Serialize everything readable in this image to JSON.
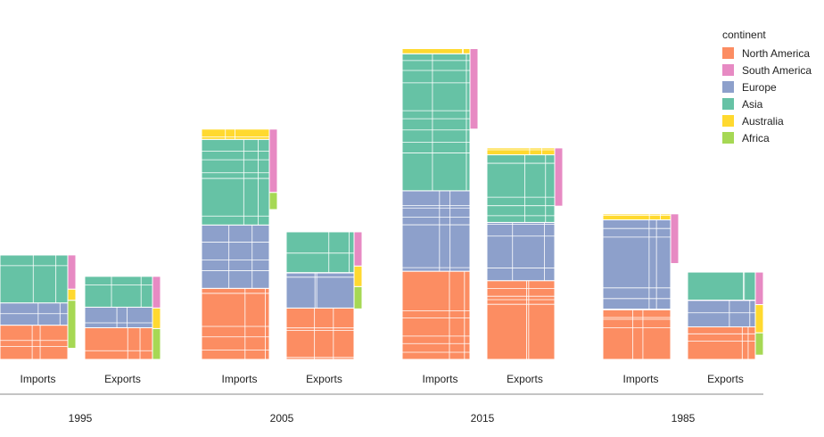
{
  "chart_data": {
    "type": "bar",
    "title": "",
    "xlabel": "",
    "ylabel": "",
    "groups": [
      "1995",
      "2005",
      "2015",
      "1985"
    ],
    "sub_categories": [
      "Imports",
      "Exports"
    ],
    "legend": {
      "title": "continent",
      "placement": "top-right"
    },
    "series": [
      {
        "name": "North America",
        "color": "#FC8D62",
        "values": {
          "1995": {
            "Imports": 40,
            "Exports": 37
          },
          "2005": {
            "Imports": 83,
            "Exports": 60
          },
          "2015": {
            "Imports": 103,
            "Exports": 92
          },
          "1985": {
            "Imports": 58,
            "Exports": 38
          }
        }
      },
      {
        "name": "South America",
        "color": "#E78AC3",
        "values": {
          "1995": {
            "Imports": 0,
            "Exports": 0
          },
          "2005": {
            "Imports": 0,
            "Exports": 0
          },
          "2015": {
            "Imports": 0,
            "Exports": 0
          },
          "1985": {
            "Imports": 0,
            "Exports": 0
          }
        }
      },
      {
        "name": "Europe",
        "color": "#8DA0CB",
        "values": {
          "1995": {
            "Imports": 26,
            "Exports": 24
          },
          "2005": {
            "Imports": 74,
            "Exports": 41
          },
          "2015": {
            "Imports": 94,
            "Exports": 68
          },
          "1985": {
            "Imports": 105,
            "Exports": 31
          }
        }
      },
      {
        "name": "Asia",
        "color": "#66C2A5",
        "values": {
          "1995": {
            "Imports": 56,
            "Exports": 36
          },
          "2005": {
            "Imports": 100,
            "Exports": 48
          },
          "2015": {
            "Imports": 160,
            "Exports": 79
          },
          "1985": {
            "Imports": 0,
            "Exports": 33
          }
        }
      },
      {
        "name": "Australia",
        "color": "#FFD92F",
        "values": {
          "1995": {
            "Imports": 0,
            "Exports": 0
          },
          "2005": {
            "Imports": 12,
            "Exports": 0
          },
          "2015": {
            "Imports": 6,
            "Exports": 8
          },
          "1985": {
            "Imports": 7,
            "Exports": 0
          }
        }
      },
      {
        "name": "Africa",
        "color": "#A6D854",
        "values": {
          "1995": {
            "Imports": 0,
            "Exports": 0
          },
          "2005": {
            "Imports": 0,
            "Exports": 0
          },
          "2015": {
            "Imports": 0,
            "Exports": 0
          },
          "1985": {
            "Imports": 0,
            "Exports": 0
          }
        }
      }
    ],
    "side_strips": {
      "1995": {
        "Imports": {
          "South America": 40,
          "Australia": 13,
          "Africa": 56
        },
        "Exports": {
          "South America": 37,
          "Australia": 24,
          "Africa": 36
        }
      },
      "2005": {
        "Imports": {
          "South America": 74,
          "Africa": 20
        },
        "Exports": {
          "South America": 40,
          "Australia": 24,
          "Africa": 26
        }
      },
      "2015": {
        "Imports": {
          "South America": 94
        },
        "Exports": {
          "South America": 68
        }
      },
      "1985": {
        "Imports": {
          "South America": 58
        },
        "Exports": {
          "South America": 38,
          "Australia": 33,
          "Africa": 26
        }
      }
    },
    "ylim": [
      0,
      370
    ],
    "grid": false
  }
}
